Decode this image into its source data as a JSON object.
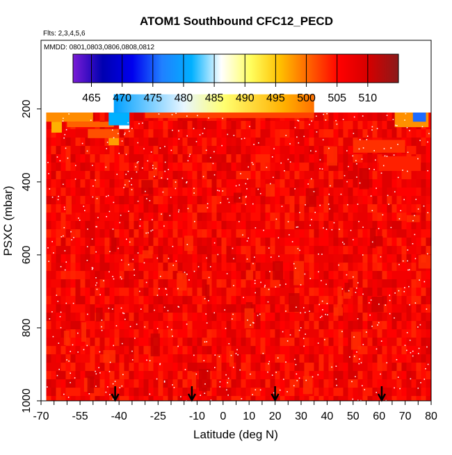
{
  "chart_data": {
    "type": "heatmap",
    "title": "ATOM1 Southbound CFC12_PECD",
    "subtitle_flights": "Flts: 2,3,4,5,6",
    "subtitle_dates": "MMDD: 0801,0803,0806,0808,0812",
    "xlabel": "Latitude (deg N)",
    "ylabel": "PSXC (mbar)",
    "xlim": [
      -70,
      80
    ],
    "ylim": [
      1000,
      50
    ],
    "x_ticks": [
      -70,
      -55,
      -40,
      -25,
      -10,
      0,
      10,
      20,
      30,
      40,
      50,
      60,
      70,
      80
    ],
    "x_tick_labels": [
      "-70",
      "-55",
      "-40",
      "-25",
      "-10",
      "0",
      "10",
      "20",
      "30",
      "40",
      "50",
      "60",
      "70",
      "80"
    ],
    "x_minor_step": 5,
    "y_ticks": [
      200,
      400,
      600,
      800,
      1000
    ],
    "y_tick_labels": [
      "200",
      "400",
      "600",
      "800",
      "1000"
    ],
    "colorbar": {
      "range": [
        462,
        515
      ],
      "ticks": [
        465,
        470,
        475,
        480,
        485,
        490,
        495,
        500,
        505,
        510
      ],
      "tick_labels": [
        "465",
        "470",
        "475",
        "480",
        "485",
        "490",
        "495",
        "500",
        "505",
        "510"
      ],
      "colors": [
        "#7a1cd6",
        "#0000b0",
        "#0000ee",
        "#2080ff",
        "#00b0ff",
        "#ffffff",
        "#ffff60",
        "#ffc000",
        "#ff6000",
        "#ff0000",
        "#d40000",
        "#8b1a1a"
      ]
    },
    "data_extent": {
      "lat_min": -68,
      "lat_max": 79,
      "pressure_top": 210,
      "pressure_bottom": 1000,
      "typical_value": 508
    },
    "upper_band": {
      "lat_range": [
        -42,
        35
      ],
      "pressure_range": [
        160,
        210
      ],
      "values_low_to_high": [
        478,
        495,
        503
      ]
    },
    "flight_markers_lat": [
      -41.5,
      -12,
      20,
      61
    ]
  }
}
